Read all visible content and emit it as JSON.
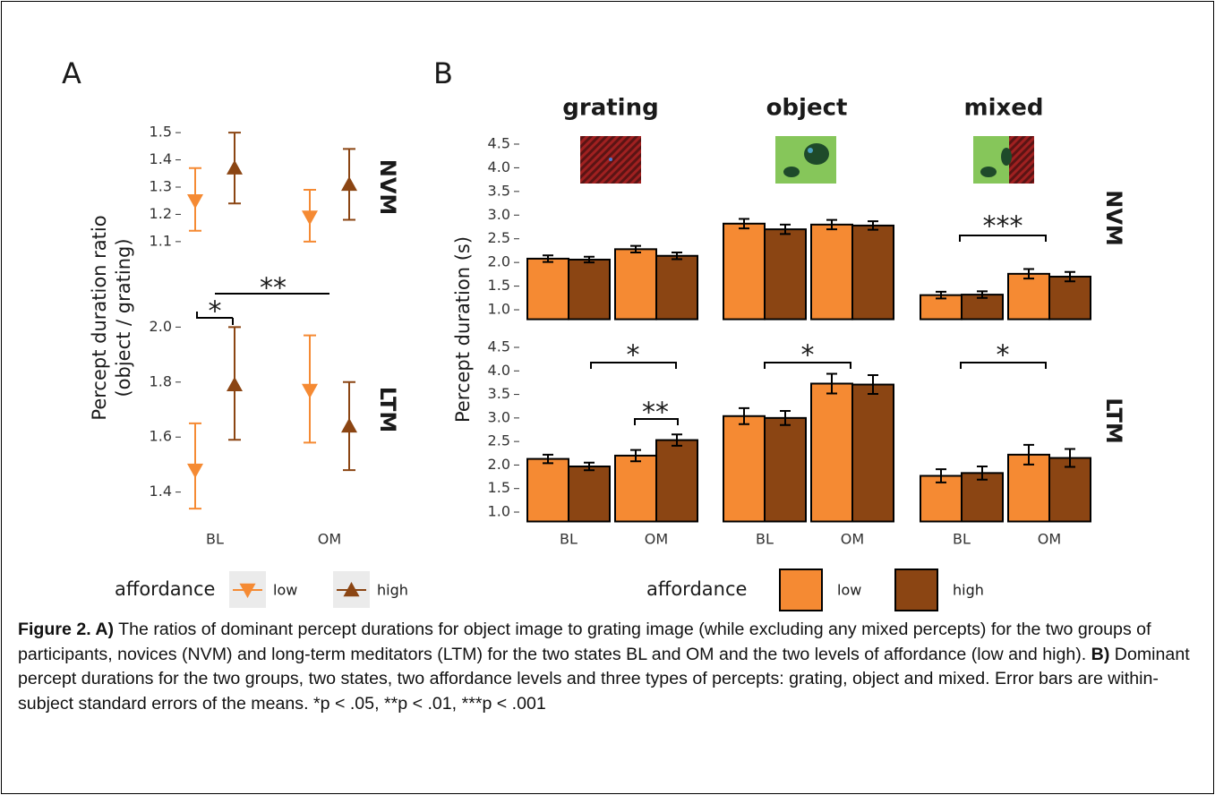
{
  "chart_data": [
    {
      "type": "pointrange",
      "panel": "A",
      "y_label": [
        "Percept duration ratio",
        "(object / grating)"
      ],
      "categories": [
        "BL",
        "OM"
      ],
      "legend_title": "affordance",
      "series": [
        {
          "name": "low",
          "color": "#f58a33",
          "marker": "down"
        },
        {
          "name": "high",
          "color": "#8b4513",
          "marker": "up"
        }
      ],
      "facets": [
        {
          "name": "NVM",
          "ylim": [
            1.07,
            1.53
          ],
          "yticks": [
            1.1,
            1.2,
            1.3,
            1.4,
            1.5
          ],
          "series": [
            {
              "values": [
                1.25,
                1.19
              ],
              "lower": [
                1.14,
                1.1
              ],
              "upper": [
                1.37,
                1.29
              ]
            },
            {
              "values": [
                1.37,
                1.31
              ],
              "lower": [
                1.24,
                1.18
              ],
              "upper": [
                1.5,
                1.44
              ]
            }
          ],
          "annotations": []
        },
        {
          "name": "LTM",
          "ylim": [
            1.35,
            2.05
          ],
          "yticks": [
            1.4,
            1.6,
            1.8,
            {
              "value": 2.0,
              "label": "2.0"
            }
          ],
          "series": [
            {
              "values": [
                1.48,
                1.77
              ],
              "lower": [
                1.34,
                1.58
              ],
              "upper": [
                1.65,
                1.97
              ]
            },
            {
              "values": [
                1.79,
                1.64
              ],
              "lower": [
                1.59,
                1.48
              ],
              "upper": [
                2.0,
                1.8
              ]
            }
          ],
          "annotations": [
            "*",
            "**"
          ]
        }
      ]
    },
    {
      "type": "bar",
      "panel": "B",
      "y_label": "Percept duration (s)",
      "categories": [
        "BL",
        "OM"
      ],
      "columns": [
        "grating",
        "object",
        "mixed"
      ],
      "legend_title": "affordance",
      "series": [
        {
          "name": "low",
          "color": "#f58a33"
        },
        {
          "name": "high",
          "color": "#8b4513"
        }
      ],
      "ylim": [
        0.8,
        4.7
      ],
      "yticks": [
        {
          "value": 1.0,
          "label": "1.0"
        },
        1.5,
        {
          "value": 2.0,
          "label": "2.0"
        },
        2.5,
        {
          "value": 3.0,
          "label": "3.0"
        },
        3.5,
        {
          "value": 4.0,
          "label": "4.0"
        },
        4.5
      ],
      "rows": [
        {
          "name": "NVM",
          "panels": [
            {
              "series": [
                {
                  "values": [
                    2.08,
                    2.28
                  ],
                  "errors": [
                    0.07,
                    0.07
                  ]
                },
                {
                  "values": [
                    2.06,
                    2.14
                  ],
                  "errors": [
                    0.06,
                    0.07
                  ]
                }
              ],
              "annotations": []
            },
            {
              "series": [
                {
                  "values": [
                    2.82,
                    2.8
                  ],
                  "errors": [
                    0.1,
                    0.1
                  ]
                },
                {
                  "values": [
                    2.7,
                    2.78
                  ],
                  "errors": [
                    0.1,
                    0.09
                  ]
                }
              ],
              "annotations": []
            },
            {
              "series": [
                {
                  "values": [
                    1.31,
                    1.76
                  ],
                  "errors": [
                    0.07,
                    0.1
                  ]
                },
                {
                  "values": [
                    1.32,
                    1.7
                  ],
                  "errors": [
                    0.07,
                    0.1
                  ]
                }
              ],
              "annotations": [
                "***"
              ]
            }
          ]
        },
        {
          "name": "LTM",
          "panels": [
            {
              "series": [
                {
                  "values": [
                    2.13,
                    2.2
                  ],
                  "errors": [
                    0.09,
                    0.12
                  ]
                },
                {
                  "values": [
                    1.97,
                    2.53
                  ],
                  "errors": [
                    0.08,
                    0.12
                  ]
                }
              ],
              "annotations": [
                "*",
                "**"
              ]
            },
            {
              "series": [
                {
                  "values": [
                    3.04,
                    3.73
                  ],
                  "errors": [
                    0.17,
                    0.21
                  ]
                },
                {
                  "values": [
                    3.0,
                    3.71
                  ],
                  "errors": [
                    0.15,
                    0.2
                  ]
                }
              ],
              "annotations": [
                "*"
              ]
            },
            {
              "series": [
                {
                  "values": [
                    1.77,
                    2.22
                  ],
                  "errors": [
                    0.14,
                    0.21
                  ]
                },
                {
                  "values": [
                    1.83,
                    2.15
                  ],
                  "errors": [
                    0.14,
                    0.19
                  ]
                }
              ],
              "annotations": [
                "*"
              ]
            }
          ]
        }
      ]
    }
  ],
  "caption": [
    {
      "text": "Figure 2. A)",
      "bold": true
    },
    {
      "text": " The ratios of dominant percept durations for object image to grating image (while excluding any mixed percepts) for the two groups of participants, novices (NVM) and long-term meditators (LTM) for the two states BL and OM and the two levels of affordance (low and high). ",
      "bold": false
    },
    {
      "text": "B)",
      "bold": true
    },
    {
      "text": " Dominant percept durations for the two groups, two states, two affordance levels and three types of percepts: grating, object and mixed. Error bars are within-subject standard errors of the means. *p < .05, **p < .01, ***p < .001",
      "bold": false
    }
  ]
}
